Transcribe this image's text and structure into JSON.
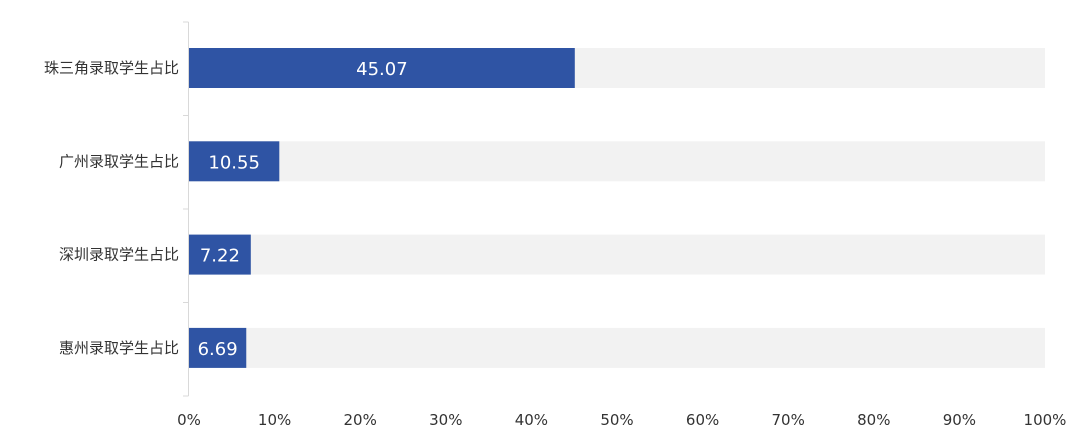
{
  "chart_data": {
    "type": "bar",
    "orientation": "horizontal",
    "title": "",
    "xlabel": "",
    "ylabel": "",
    "categories": [
      "珠三角录取学生占比",
      "广州录取学生占比",
      "深圳录取学生占比",
      "惠州录取学生占比"
    ],
    "values": [
      45.07,
      10.55,
      7.22,
      6.69
    ],
    "data_labels": [
      "45.07",
      "10.55",
      "7.22",
      "6.69"
    ],
    "xlim": [
      0,
      100
    ],
    "x_ticks": [
      "0%",
      "10%",
      "20%",
      "30%",
      "40%",
      "50%",
      "60%",
      "70%",
      "80%",
      "90%",
      "100%"
    ],
    "grid": false,
    "legend": "none",
    "background_track": true,
    "colors": {
      "bar": "#2f54a4",
      "track": "#f2f2f2",
      "axis": "#d9d9d9",
      "label_text": "#333333",
      "data_label_text": "#ffffff"
    }
  }
}
